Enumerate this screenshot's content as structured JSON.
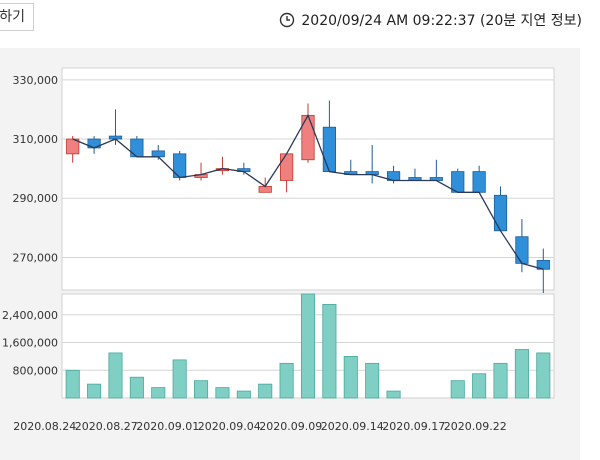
{
  "toolbar": {
    "left_button_label": "하기"
  },
  "timestamp": {
    "text": "2020/09/24 AM 09:22:37 (20분 지연 정보)",
    "icon": "clock-icon"
  },
  "colors": {
    "up": "#f08080",
    "down": "#2f8fd8",
    "line": "#2a3a5a",
    "volume": "#7fcfc4",
    "grid": "#d6d6d6"
  },
  "chart_data": [
    {
      "type": "candlestick",
      "ylabels": [
        "330,000",
        "310,000",
        "290,000",
        "270,000"
      ],
      "yticks": [
        330000,
        310000,
        290000,
        270000
      ],
      "ylim": [
        259000,
        334000
      ],
      "candles": [
        {
          "o": 305000,
          "h": 311000,
          "l": 302000,
          "c": 310000
        },
        {
          "o": 310000,
          "h": 311000,
          "l": 305000,
          "c": 307000
        },
        {
          "o": 311000,
          "h": 320000,
          "l": 308000,
          "c": 310000
        },
        {
          "o": 310000,
          "h": 311000,
          "l": 304000,
          "c": 304000
        },
        {
          "o": 306000,
          "h": 308000,
          "l": 303000,
          "c": 304000
        },
        {
          "o": 305000,
          "h": 306000,
          "l": 296000,
          "c": 297000
        },
        {
          "o": 297000,
          "h": 302000,
          "l": 296000,
          "c": 298000
        },
        {
          "o": 300000,
          "h": 304000,
          "l": 298000,
          "c": 300000
        },
        {
          "o": 300000,
          "h": 302000,
          "l": 298000,
          "c": 299000
        },
        {
          "o": 292000,
          "h": 297000,
          "l": 292000,
          "c": 294000
        },
        {
          "o": 296000,
          "h": 305000,
          "l": 292000,
          "c": 305000
        },
        {
          "o": 303000,
          "h": 322000,
          "l": 302000,
          "c": 318000
        },
        {
          "o": 314000,
          "h": 323000,
          "l": 299000,
          "c": 299000
        },
        {
          "o": 299000,
          "h": 303000,
          "l": 298000,
          "c": 298000
        },
        {
          "o": 299000,
          "h": 308000,
          "l": 295000,
          "c": 298000
        },
        {
          "o": 299000,
          "h": 301000,
          "l": 295000,
          "c": 296000
        },
        {
          "o": 297000,
          "h": 300000,
          "l": 296000,
          "c": 296000
        },
        {
          "o": 297000,
          "h": 303000,
          "l": 296000,
          "c": 296000
        },
        {
          "o": 299000,
          "h": 300000,
          "l": 292000,
          "c": 292000
        },
        {
          "o": 299000,
          "h": 301000,
          "l": 292000,
          "c": 292000
        },
        {
          "o": 291000,
          "h": 294000,
          "l": 279000,
          "c": 279000
        },
        {
          "o": 277000,
          "h": 283000,
          "l": 265000,
          "c": 268000
        },
        {
          "o": 269000,
          "h": 273000,
          "l": 258000,
          "c": 266000
        }
      ]
    },
    {
      "type": "bar",
      "ylabels": [
        "2,400,000",
        "1,600,000",
        "800,000"
      ],
      "yticks": [
        2400000,
        1600000,
        800000
      ],
      "ylim": [
        0,
        3000000
      ],
      "values": [
        800000,
        400000,
        1300000,
        600000,
        300000,
        1100000,
        500000,
        300000,
        200000,
        400000,
        1000000,
        3000000,
        2700000,
        1200000,
        1000000,
        200000,
        0,
        0,
        500000,
        700000,
        1000000,
        1400000,
        1300000
      ],
      "xlabels": [
        "2020.08.24",
        "2020.08.27",
        "2020.09.01",
        "2020.09.04",
        "2020.09.09",
        "2020.09.14",
        "2020.09.17",
        "2020.09.22"
      ]
    }
  ]
}
